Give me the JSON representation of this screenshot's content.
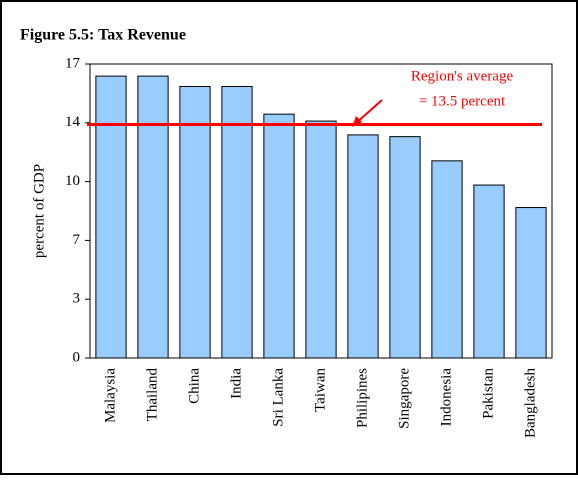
{
  "chart_data": {
    "type": "bar",
    "title": "Figure 5.5: Tax Revenue",
    "y_label": "percent of GDP",
    "categories": [
      "Malaysia",
      "Thailand",
      "China",
      "India",
      "Sri Lanka",
      "Taiwan",
      "Philipines",
      "Singapore",
      "Indonesia",
      "Pakistan",
      "Bangladesh"
    ],
    "values": [
      16.3,
      16.3,
      15.7,
      15.7,
      14.1,
      13.7,
      12.9,
      12.8,
      11.4,
      10.0,
      8.7
    ],
    "color": "#99ccff",
    "ylim": [
      0,
      17
    ],
    "yticks": [
      0,
      {
        "value": 3.4,
        "label": "3"
      },
      {
        "value": 6.8,
        "label": "7"
      },
      {
        "value": 10.2,
        "label": "10"
      },
      {
        "value": 13.6,
        "label": "14"
      },
      17
    ],
    "average": 13.5,
    "average_color": "#ff0000",
    "annotation": [
      "Region's average",
      "= 13.5 percent"
    ]
  }
}
